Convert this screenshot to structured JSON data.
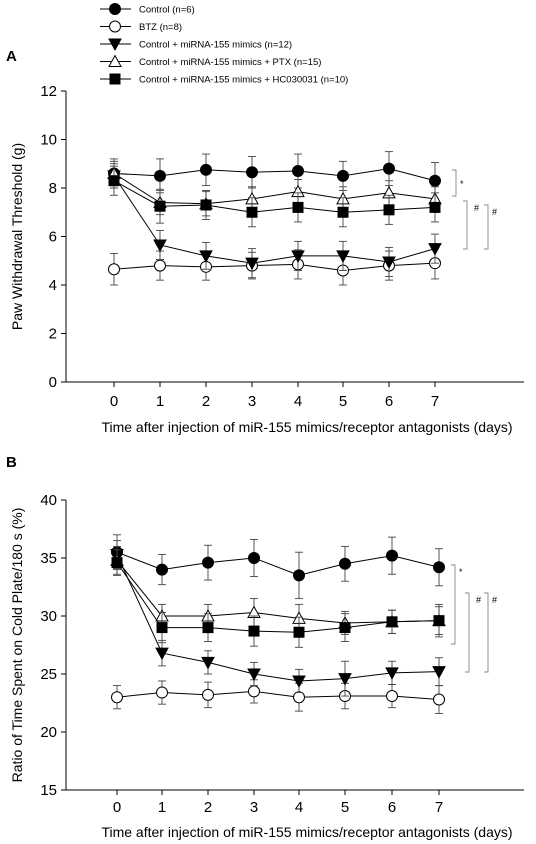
{
  "legend": [
    {
      "label": "Control (n=6)",
      "marker": "circle-filled"
    },
    {
      "label": "BTZ (n=8)",
      "marker": "circle-open"
    },
    {
      "label": "Control + miRNA-155 mimics (n=12)",
      "marker": "triangle-down-filled"
    },
    {
      "label": "Control + miRNA-155 mimics + PTX (n=15)",
      "marker": "triangle-up-open"
    },
    {
      "label": "Control + miRNA-155 mimics + HC030031 (n=10)",
      "marker": "square-filled"
    }
  ],
  "chart_data": [
    {
      "panel": "A",
      "type": "line",
      "xlabel": "Time after injection of miR-155 mimics/receptor antagonists (days)",
      "ylabel": "Paw Withdrawal Threshold (g)",
      "x": [
        0,
        1,
        2,
        3,
        4,
        5,
        6,
        7
      ],
      "xlim": [
        -0.6,
        7.6
      ],
      "ylim": [
        0,
        12
      ],
      "yticks": [
        0,
        2,
        4,
        6,
        8,
        10,
        12
      ],
      "grid": false,
      "legend_position": "top-left",
      "series": [
        {
          "name": "Control (n=6)",
          "marker": "circle-filled",
          "values": [
            8.6,
            8.5,
            8.75,
            8.65,
            8.7,
            8.5,
            8.8,
            8.3
          ],
          "errors": [
            0.6,
            0.7,
            0.65,
            0.65,
            0.7,
            0.6,
            0.7,
            0.75
          ]
        },
        {
          "name": "BTZ (n=8)",
          "marker": "circle-open",
          "values": [
            4.65,
            4.8,
            4.75,
            4.8,
            4.85,
            4.6,
            4.8,
            4.9
          ],
          "errors": [
            0.65,
            0.6,
            0.55,
            0.55,
            0.6,
            0.6,
            0.6,
            0.65
          ]
        },
        {
          "name": "Control + miRNA-155 mimics (n=12)",
          "marker": "triangle-down-filled",
          "values": [
            8.5,
            5.65,
            5.2,
            4.9,
            5.2,
            5.2,
            4.95,
            5.5
          ],
          "errors": [
            0.5,
            0.6,
            0.55,
            0.6,
            0.6,
            0.6,
            0.6,
            0.6
          ]
        },
        {
          "name": "Control + miRNA-155 mimics + PTX (n=15)",
          "marker": "triangle-up-open",
          "values": [
            8.6,
            7.4,
            7.35,
            7.55,
            7.85,
            7.55,
            7.8,
            7.55
          ],
          "errors": [
            0.5,
            0.5,
            0.5,
            0.5,
            0.5,
            0.5,
            0.5,
            0.5
          ]
        },
        {
          "name": "Control + miRNA-155 mimics + HC030031 (n=10)",
          "marker": "square-filled",
          "values": [
            8.3,
            7.25,
            7.3,
            7.0,
            7.2,
            7.0,
            7.1,
            7.2
          ],
          "errors": [
            0.6,
            0.7,
            0.6,
            0.6,
            0.6,
            0.6,
            0.6,
            0.6
          ]
        }
      ],
      "significance": [
        "*",
        "#",
        "#"
      ]
    },
    {
      "panel": "B",
      "type": "line",
      "xlabel": "Time after injection of miR-155 mimics/receptor antagonists (days)",
      "ylabel": "Ratio of Time Spent on Cold Plate/180 s (%)",
      "x": [
        0,
        1,
        2,
        3,
        4,
        5,
        6,
        7
      ],
      "xlim": [
        -0.6,
        7.6
      ],
      "ylim": [
        15,
        40
      ],
      "yticks": [
        15,
        20,
        25,
        30,
        35,
        40
      ],
      "grid": false,
      "series": [
        {
          "name": "Control (n=6)",
          "marker": "circle-filled",
          "values": [
            35.5,
            34.0,
            34.6,
            35.0,
            33.5,
            34.5,
            35.2,
            34.2
          ],
          "errors": [
            1.5,
            1.3,
            1.5,
            1.6,
            2.0,
            1.5,
            1.6,
            1.6
          ]
        },
        {
          "name": "BTZ (n=8)",
          "marker": "circle-open",
          "values": [
            23.0,
            23.4,
            23.2,
            23.5,
            23.0,
            23.1,
            23.1,
            22.8
          ],
          "errors": [
            1.0,
            1.0,
            1.1,
            1.0,
            1.2,
            1.1,
            1.0,
            1.2
          ]
        },
        {
          "name": "Control + miRNA-155 mimics (n=12)",
          "marker": "triangle-down-filled",
          "values": [
            35.3,
            26.8,
            26.0,
            25.0,
            24.4,
            24.6,
            25.1,
            25.2
          ],
          "errors": [
            1.2,
            1.1,
            1.0,
            1.0,
            1.0,
            1.5,
            1.0,
            1.2
          ]
        },
        {
          "name": "Control + miRNA-155 mimics + PTX (n=15)",
          "marker": "triangle-up-open",
          "values": [
            34.8,
            30.0,
            30.0,
            30.3,
            29.8,
            29.4,
            29.5,
            29.6
          ],
          "errors": [
            1.2,
            1.0,
            1.0,
            1.2,
            1.2,
            1.0,
            1.0,
            1.2
          ]
        },
        {
          "name": "Control + miRNA-155 mimics + HC030031 (n=10)",
          "marker": "square-filled",
          "values": [
            34.6,
            29.0,
            29.0,
            28.7,
            28.6,
            29.0,
            29.5,
            29.6
          ],
          "errors": [
            1.1,
            1.3,
            1.2,
            1.3,
            1.3,
            1.2,
            1.0,
            1.4
          ]
        }
      ],
      "significance": [
        "*",
        "#",
        "#"
      ]
    }
  ]
}
